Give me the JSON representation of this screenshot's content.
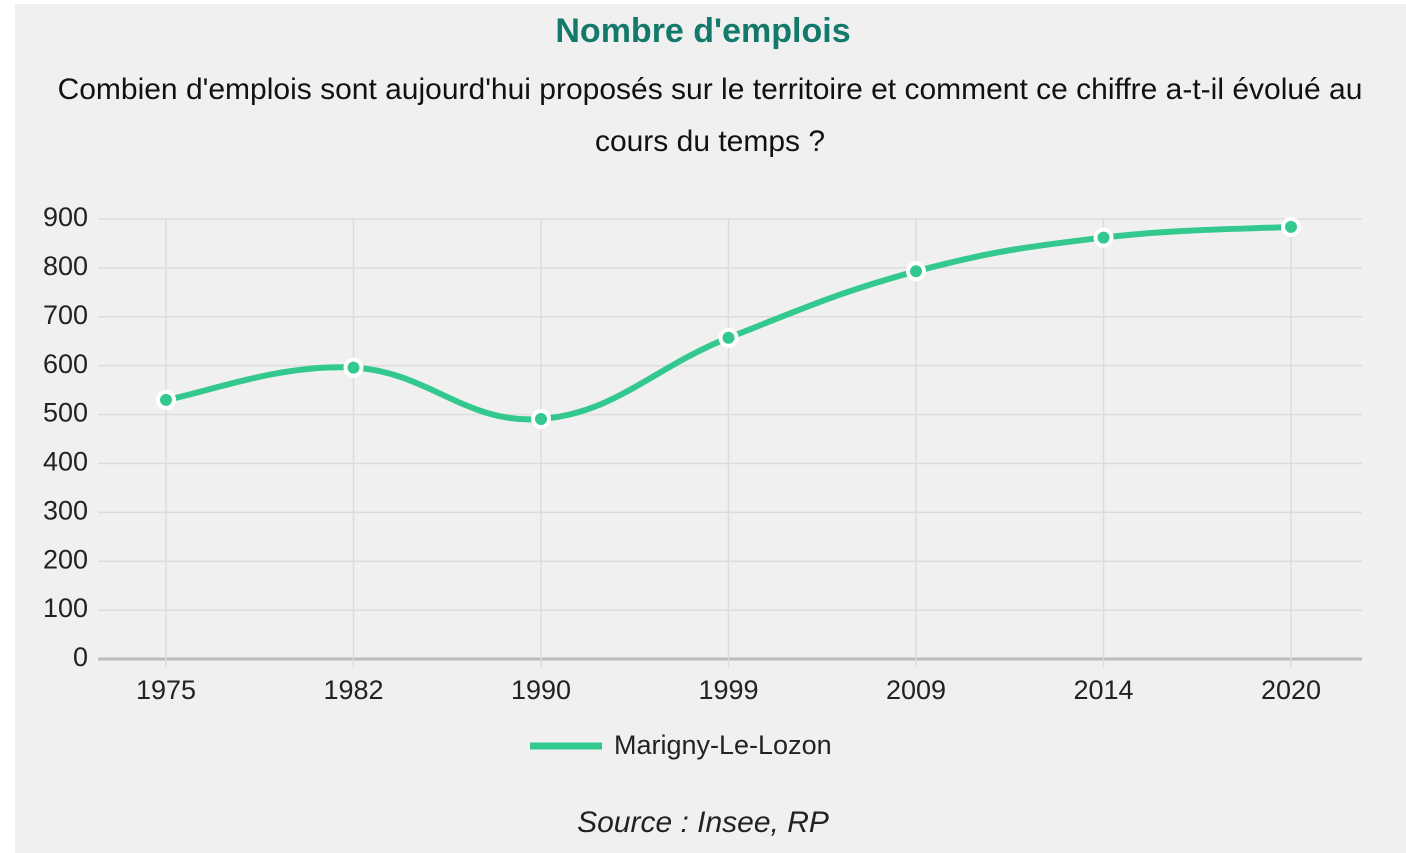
{
  "chart_data": {
    "type": "line",
    "title": "Nombre d'emplois",
    "subtitle": "Combien d'emplois sont aujourd'hui proposés sur le territoire et comment ce chiffre a-t-il évolué au cours du temps ?",
    "categories": [
      "1975",
      "1982",
      "1990",
      "1999",
      "2009",
      "2014",
      "2020"
    ],
    "series": [
      {
        "name": "Marigny-Le-Lozon",
        "color": "#33c98e",
        "values": [
          530,
          596,
          491,
          657,
          793,
          862,
          884
        ]
      }
    ],
    "ylim": [
      0,
      900
    ],
    "yticks": [
      0,
      100,
      200,
      300,
      400,
      500,
      600,
      700,
      800,
      900
    ],
    "grid": true,
    "legend": "bottom",
    "source": "Source : Insee, RP"
  }
}
